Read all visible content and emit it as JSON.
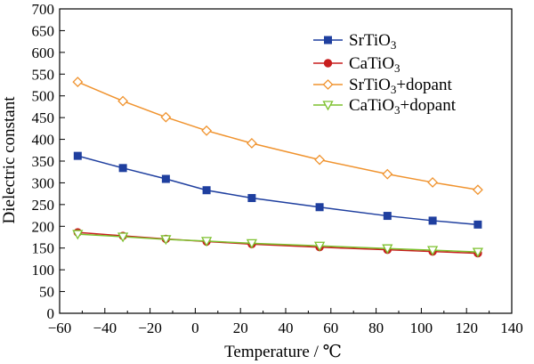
{
  "chart_data": {
    "type": "line",
    "xlabel": "Temperature / ℃",
    "ylabel": "Dielectric constant",
    "xlim": [
      -60,
      140
    ],
    "ylim": [
      0,
      700
    ],
    "x_ticks": [
      -60,
      -40,
      -20,
      0,
      20,
      40,
      60,
      80,
      100,
      120,
      140
    ],
    "x_tick_labels": [
      "−60",
      "−40",
      "−20",
      "0",
      "20",
      "40",
      "60",
      "80",
      "100",
      "120",
      "140"
    ],
    "y_ticks": [
      0,
      50,
      100,
      150,
      200,
      250,
      300,
      350,
      400,
      450,
      500,
      550,
      600,
      650,
      700
    ],
    "y_tick_labels": [
      "0",
      "50",
      "100",
      "150",
      "200",
      "250",
      "300",
      "350",
      "400",
      "450",
      "500",
      "550",
      "600",
      "650",
      "700"
    ],
    "grid": false,
    "legend_position": "top-right",
    "x": [
      -52,
      -32,
      -13,
      5,
      25,
      55,
      85,
      105,
      125
    ],
    "series": [
      {
        "name": "SrTiO3",
        "name_base": "SrTiO",
        "name_sub": "3",
        "name_suffix": "",
        "color": "#1f3f9f",
        "marker": "square-filled",
        "values": [
          362,
          334,
          309,
          283,
          265,
          244,
          224,
          213,
          204
        ]
      },
      {
        "name": "CaTiO3",
        "name_base": "CaTiO",
        "name_sub": "3",
        "name_suffix": "",
        "color": "#c81e1e",
        "marker": "circle-filled",
        "values": [
          186,
          178,
          171,
          165,
          159,
          152,
          146,
          142,
          138
        ]
      },
      {
        "name": "SrTiO3+dopant",
        "name_base": "SrTiO",
        "name_sub": "3",
        "name_suffix": "+dopant",
        "color": "#f0932e",
        "marker": "diamond-open",
        "values": [
          532,
          488,
          451,
          420,
          391,
          353,
          320,
          301,
          284
        ]
      },
      {
        "name": "CaTiO3+dopant",
        "name_base": "CaTiO",
        "name_sub": "3",
        "name_suffix": "+dopant",
        "color": "#7dc12e",
        "marker": "triangle-down-open",
        "values": [
          182,
          176,
          170,
          166,
          161,
          155,
          149,
          145,
          141
        ]
      }
    ]
  }
}
